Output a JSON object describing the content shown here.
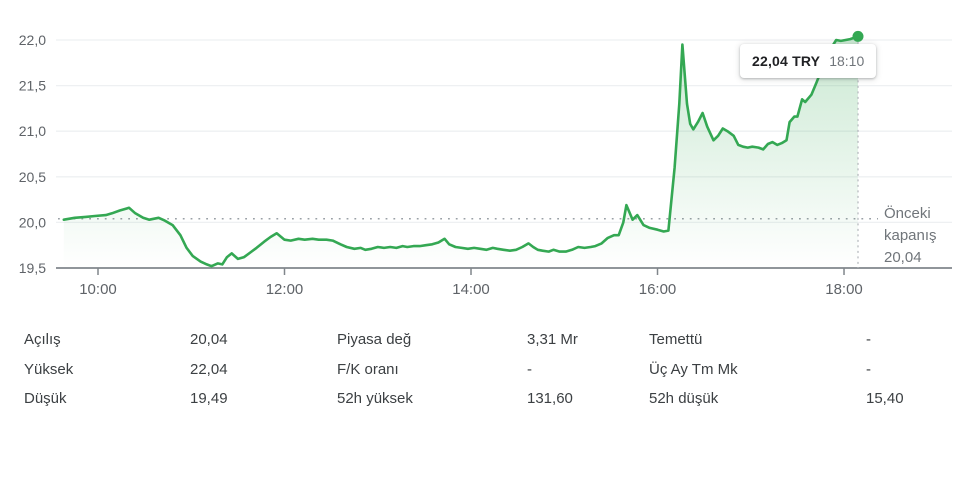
{
  "accent_color": "#34a853",
  "chart": {
    "tooltip": {
      "price": "22,04 TRY",
      "time": "18:10"
    },
    "prev_close_label": {
      "line1": "Önceki",
      "line2": "kapanış",
      "line3": "20,04"
    }
  },
  "chart_data": {
    "type": "line",
    "title": "Intraday price chart",
    "currency": "TRY",
    "line_color": "#34a853",
    "fill_color": "#34a853",
    "grid": true,
    "ylim": [
      19.5,
      22.0
    ],
    "y_ticks": [
      {
        "v": 19.5,
        "label": "19,5"
      },
      {
        "v": 20.0,
        "label": "20,0"
      },
      {
        "v": 20.5,
        "label": "20,5"
      },
      {
        "v": 21.0,
        "label": "21,0"
      },
      {
        "v": 21.5,
        "label": "21,5"
      },
      {
        "v": 22.0,
        "label": "22,0"
      }
    ],
    "x_ticks": [
      {
        "t": 600,
        "label": "10:00"
      },
      {
        "t": 720,
        "label": "12:00"
      },
      {
        "t": 840,
        "label": "14:00"
      },
      {
        "t": 960,
        "label": "16:00"
      },
      {
        "t": 1080,
        "label": "18:00"
      }
    ],
    "previous_close": 20.04,
    "last_point": {
      "time": "18:10",
      "value": 22.04
    },
    "points_format": "[minutes_since_midnight, price_try]",
    "points": [
      [
        578,
        20.03
      ],
      [
        585,
        20.05
      ],
      [
        592,
        20.06
      ],
      [
        598,
        20.07
      ],
      [
        605,
        20.08
      ],
      [
        609,
        20.1
      ],
      [
        614,
        20.13
      ],
      [
        620,
        20.16
      ],
      [
        624,
        20.1
      ],
      [
        629,
        20.05
      ],
      [
        633,
        20.03
      ],
      [
        639,
        20.05
      ],
      [
        643,
        20.02
      ],
      [
        648,
        19.97
      ],
      [
        653,
        19.86
      ],
      [
        657,
        19.72
      ],
      [
        661,
        19.63
      ],
      [
        666,
        19.57
      ],
      [
        670,
        19.54
      ],
      [
        673,
        19.52
      ],
      [
        677,
        19.55
      ],
      [
        680,
        19.54
      ],
      [
        683,
        19.62
      ],
      [
        686,
        19.66
      ],
      [
        690,
        19.6
      ],
      [
        694,
        19.62
      ],
      [
        698,
        19.67
      ],
      [
        702,
        19.72
      ],
      [
        707,
        19.79
      ],
      [
        711,
        19.84
      ],
      [
        715,
        19.88
      ],
      [
        720,
        19.81
      ],
      [
        724,
        19.8
      ],
      [
        729,
        19.82
      ],
      [
        733,
        19.81
      ],
      [
        738,
        19.82
      ],
      [
        742,
        19.81
      ],
      [
        747,
        19.81
      ],
      [
        751,
        19.8
      ],
      [
        756,
        19.76
      ],
      [
        760,
        19.73
      ],
      [
        765,
        19.71
      ],
      [
        769,
        19.72
      ],
      [
        772,
        19.7
      ],
      [
        776,
        19.71
      ],
      [
        780,
        19.73
      ],
      [
        784,
        19.72
      ],
      [
        788,
        19.73
      ],
      [
        792,
        19.72
      ],
      [
        796,
        19.74
      ],
      [
        799,
        19.73
      ],
      [
        803,
        19.74
      ],
      [
        807,
        19.74
      ],
      [
        811,
        19.75
      ],
      [
        815,
        19.76
      ],
      [
        819,
        19.78
      ],
      [
        823,
        19.82
      ],
      [
        826,
        19.76
      ],
      [
        830,
        19.73
      ],
      [
        834,
        19.72
      ],
      [
        838,
        19.71
      ],
      [
        842,
        19.72
      ],
      [
        846,
        19.71
      ],
      [
        850,
        19.7
      ],
      [
        854,
        19.72
      ],
      [
        857,
        19.71
      ],
      [
        861,
        19.7
      ],
      [
        865,
        19.69
      ],
      [
        869,
        19.7
      ],
      [
        873,
        19.73
      ],
      [
        877,
        19.77
      ],
      [
        880,
        19.73
      ],
      [
        883,
        19.7
      ],
      [
        886,
        19.69
      ],
      [
        890,
        19.68
      ],
      [
        893,
        19.7
      ],
      [
        897,
        19.68
      ],
      [
        901,
        19.68
      ],
      [
        905,
        19.7
      ],
      [
        909,
        19.73
      ],
      [
        913,
        19.72
      ],
      [
        917,
        19.73
      ],
      [
        920,
        19.74
      ],
      [
        924,
        19.77
      ],
      [
        928,
        19.83
      ],
      [
        932,
        19.86
      ],
      [
        935,
        19.86
      ],
      [
        938,
        20.0
      ],
      [
        940,
        20.19
      ],
      [
        944,
        20.03
      ],
      [
        947,
        20.08
      ],
      [
        951,
        19.97
      ],
      [
        955,
        19.94
      ],
      [
        960,
        19.92
      ],
      [
        964,
        19.9
      ],
      [
        967,
        19.91
      ],
      [
        971,
        20.6
      ],
      [
        974,
        21.3
      ],
      [
        976,
        21.95
      ],
      [
        979,
        21.3
      ],
      [
        981,
        21.08
      ],
      [
        983,
        21.02
      ],
      [
        986,
        21.1
      ],
      [
        989,
        21.2
      ],
      [
        992,
        21.05
      ],
      [
        996,
        20.9
      ],
      [
        999,
        20.95
      ],
      [
        1002,
        21.03
      ],
      [
        1005,
        21.0
      ],
      [
        1009,
        20.95
      ],
      [
        1012,
        20.85
      ],
      [
        1015,
        20.83
      ],
      [
        1018,
        20.82
      ],
      [
        1021,
        20.83
      ],
      [
        1025,
        20.82
      ],
      [
        1028,
        20.8
      ],
      [
        1031,
        20.86
      ],
      [
        1034,
        20.88
      ],
      [
        1037,
        20.85
      ],
      [
        1040,
        20.87
      ],
      [
        1043,
        20.9
      ],
      [
        1045,
        21.1
      ],
      [
        1048,
        21.16
      ],
      [
        1050,
        21.16
      ],
      [
        1053,
        21.35
      ],
      [
        1055,
        21.32
      ],
      [
        1059,
        21.4
      ],
      [
        1062,
        21.52
      ],
      [
        1065,
        21.65
      ],
      [
        1068,
        21.8
      ],
      [
        1072,
        21.92
      ],
      [
        1075,
        22.0
      ],
      [
        1078,
        21.99
      ],
      [
        1081,
        22.0
      ],
      [
        1084,
        22.01
      ],
      [
        1089,
        22.04
      ]
    ]
  },
  "stats": {
    "rows": [
      [
        {
          "label": "Açılış",
          "value": "20,04"
        },
        {
          "label": "Piyasa değ",
          "value": "3,31 Mr"
        },
        {
          "label": "Temettü",
          "value": "-"
        }
      ],
      [
        {
          "label": "Yüksek",
          "value": "22,04"
        },
        {
          "label": "F/K oranı",
          "value": "-"
        },
        {
          "label": "Üç Ay Tm Mk",
          "value": "-"
        }
      ],
      [
        {
          "label": "Düşük",
          "value": "19,49"
        },
        {
          "label": "52h yüksek",
          "value": "131,60"
        },
        {
          "label": "52h düşük",
          "value": "15,40"
        }
      ]
    ]
  }
}
